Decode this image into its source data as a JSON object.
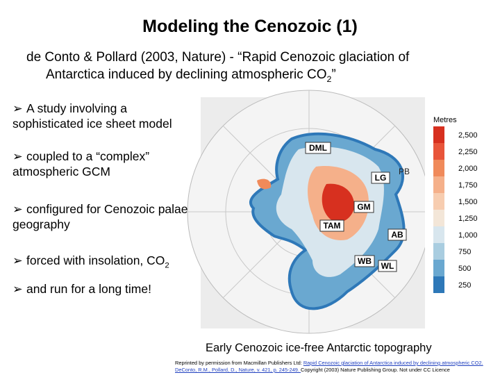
{
  "header": {
    "title": "Modeling the Cenozoic (1)",
    "subtitle_line1": "de Conto & Pollard (2003, Nature) - “Rapid Cenozoic glaciation of",
    "subtitle_line2": "Antarctica induced by declining atmospheric CO",
    "subtitle_line2_sub": "2",
    "subtitle_line2_end": "”"
  },
  "bullets": [
    {
      "text": "A study involving a sophisticated ice sheet model"
    },
    {
      "text": "coupled to a “complex” atmospheric GCM"
    },
    {
      "text": "configured for Cenozoic palaeo-geography"
    },
    {
      "text": "forced with insolation, CO",
      "sub": "2"
    },
    {
      "text": "and run for a long time!"
    }
  ],
  "map": {
    "labels": [
      "DML",
      "PB",
      "LG",
      "GM",
      "TAM",
      "AB",
      "WB",
      "WL"
    ],
    "legend": {
      "title": "Metres",
      "entries": [
        {
          "label": "2,500",
          "color": "#d7301f"
        },
        {
          "label": "2,250",
          "color": "#e8553a"
        },
        {
          "label": "2,000",
          "color": "#f08a5a"
        },
        {
          "label": "1,750",
          "color": "#f5b08a"
        },
        {
          "label": "1,500",
          "color": "#f7cdb0"
        },
        {
          "label": "1,250",
          "color": "#f3e6d8"
        },
        {
          "label": "1,000",
          "color": "#d8e6ee"
        },
        {
          "label": "750",
          "color": "#a9cde0"
        },
        {
          "label": "500",
          "color": "#6aa8d0"
        },
        {
          "label": "250",
          "color": "#2e78b8"
        }
      ]
    }
  },
  "caption": "Early Cenozoic ice-free Antarctic topography",
  "credit": {
    "prefix": "Reprinted by permission from Macmillan Publishers Ltd: ",
    "link": "Rapid Cenozoic glaciation of Antarctica induced by declining atmospheric CO2. DeConto, R.M., Pollard, D., Nature, v. 421, p. 245-249. ",
    "suffix": "Copyright (2003) Nature Publishing Group. Not under CC Licence"
  }
}
